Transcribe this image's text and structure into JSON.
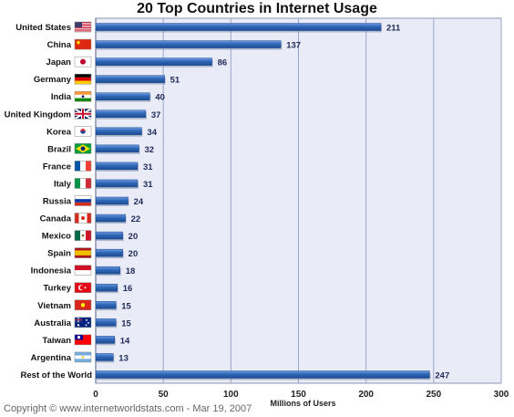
{
  "chart_data": {
    "type": "bar",
    "orientation": "horizontal",
    "title": "20 Top Countries in Internet Usage",
    "xlabel": "Millions of Users",
    "ylabel": "",
    "xlim": [
      0,
      300
    ],
    "xticks": [
      0,
      50,
      100,
      150,
      200,
      250,
      300
    ],
    "grid": true,
    "categories": [
      "United States",
      "China",
      "Japan",
      "Germany",
      "India",
      "United Kingdom",
      "Korea",
      "Brazil",
      "France",
      "Italy",
      "Russia",
      "Canada",
      "Mexico",
      "Spain",
      "Indonesia",
      "Turkey",
      "Vietnam",
      "Australia",
      "Taiwan",
      "Argentina",
      "Rest of the World"
    ],
    "values": [
      211,
      137,
      86,
      51,
      40,
      37,
      34,
      32,
      31,
      31,
      24,
      22,
      20,
      20,
      18,
      16,
      15,
      15,
      14,
      13,
      247
    ],
    "flags": [
      "us-flag-icon",
      "china-flag-icon",
      "japan-flag-icon",
      "germany-flag-icon",
      "india-flag-icon",
      "uk-flag-icon",
      "korea-flag-icon",
      "brazil-flag-icon",
      "france-flag-icon",
      "italy-flag-icon",
      "russia-flag-icon",
      "canada-flag-icon",
      "mexico-flag-icon",
      "spain-flag-icon",
      "indonesia-flag-icon",
      "turkey-flag-icon",
      "vietnam-flag-icon",
      "australia-flag-icon",
      "taiwan-flag-icon",
      "argentina-flag-icon",
      ""
    ]
  },
  "footer": {
    "copyright": "Copyright © www.internetworldstats.com - Mar 19, 2007"
  },
  "colors": {
    "bar": "#2f67b6",
    "bar_dark": "#1d4c91",
    "plot_bg": "#e9ecf6",
    "grid": "#9aa6c9",
    "label": "#1f2a5a"
  }
}
